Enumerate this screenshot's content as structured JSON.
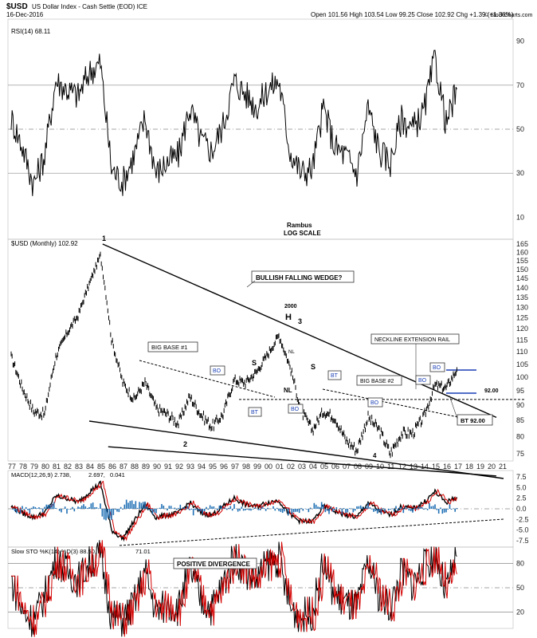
{
  "header": {
    "symbol": "$USD",
    "name": "US Dollar Index - Cash Settle (EOD) ICE",
    "date": "16-Dec-2016",
    "ohlc": "Open 101.56  High 103.54  Low 99.25  Close 102.92  Chg +1.39 (+1.36%)",
    "watermark": "© StockCharts.com"
  },
  "annotations": {
    "author": "Rambus",
    "scale": "LOG SCALE",
    "wedge": "BULLISH FALLING WEDGE?",
    "base1": "BIG BASE #1",
    "base2": "BIG BASE #2",
    "neckline_rail": "NECKLINE EXTENSION RAIL",
    "positive_divergence": "POSITIVE DIVERGENCE",
    "bt92": "BT 92.00",
    "level92": "92.00",
    "year2000": "2000",
    "h": "H",
    "s": "S",
    "nl": "NL",
    "bo": "BO",
    "bt": "BT",
    "p1": "1",
    "p2": "2",
    "p3": "3",
    "p4": "4"
  },
  "panels": {
    "rsi": {
      "label": "RSI(14) 68.11",
      "ticks": [
        90,
        70,
        50,
        30,
        10
      ]
    },
    "price": {
      "label": "$USD (Monthly) 102.92",
      "ticks": [
        165,
        160,
        155,
        150,
        145,
        140,
        135,
        130,
        125,
        120,
        115,
        110,
        105,
        100,
        95,
        90,
        85,
        80,
        75
      ]
    },
    "macd": {
      "label_main": "MACD(12,26,9) 2.738,",
      "label_signal": "2.697,",
      "label_hist": "0.041",
      "ticks": [
        "7.5",
        "5.0",
        "2.5",
        "0.0",
        "-2.5",
        "-5.0",
        "-7.5"
      ]
    },
    "sto": {
      "label_main": "Slow STO %K(14) %D(3) 88.50,",
      "label_d": "71.01",
      "ticks": [
        80,
        50,
        20
      ]
    }
  },
  "years": [
    "77",
    "78",
    "79",
    "80",
    "81",
    "82",
    "83",
    "84",
    "85",
    "86",
    "87",
    "88",
    "89",
    "90",
    "91",
    "92",
    "93",
    "94",
    "95",
    "96",
    "97",
    "98",
    "99",
    "00",
    "01",
    "02",
    "03",
    "04",
    "05",
    "06",
    "07",
    "08",
    "09",
    "10",
    "11",
    "12",
    "13",
    "14",
    "15",
    "16",
    "17",
    "18",
    "19",
    "20",
    "21"
  ],
  "chart_data": {
    "type": "line",
    "title": "$USD US Dollar Index - Cash Settle (EOD) ICE",
    "y_scale": "log",
    "x": [
      1977,
      1978,
      1979,
      1980,
      1981,
      1982,
      1983,
      1984,
      1985,
      1986,
      1987,
      1988,
      1989,
      1990,
      1991,
      1992,
      1993,
      1994,
      1995,
      1996,
      1997,
      1998,
      1999,
      2000,
      2001,
      2002,
      2003,
      2004,
      2005,
      2006,
      2007,
      2008,
      2009,
      2010,
      2011,
      2012,
      2013,
      2014,
      2015,
      2016,
      2016.96
    ],
    "series": [
      {
        "name": "$USD (Monthly)",
        "values": [
          108,
          96,
          88,
          87,
          108,
          118,
          126,
          142,
          158,
          115,
          98,
          92,
          98,
          89,
          87,
          84,
          93,
          87,
          83,
          87,
          99,
          98,
          102,
          109,
          117,
          104,
          88,
          82,
          88,
          86,
          79,
          76,
          86,
          82,
          75,
          81,
          81,
          86,
          97,
          96,
          102.92
        ]
      },
      {
        "name": "RSI(14)",
        "values": [
          55,
          42,
          25,
          38,
          72,
          68,
          65,
          76,
          80,
          32,
          26,
          38,
          55,
          30,
          35,
          38,
          60,
          45,
          40,
          52,
          72,
          66,
          60,
          68,
          72,
          40,
          30,
          32,
          60,
          42,
          38,
          30,
          60,
          40,
          35,
          55,
          50,
          58,
          82,
          52,
          68.11
        ]
      },
      {
        "name": "MACD(12,26,9)",
        "values": [
          0.5,
          -1,
          -2,
          -1,
          3,
          2.5,
          1.5,
          4,
          6,
          -5,
          -7,
          -3,
          1,
          -2,
          -1.5,
          -1,
          1.5,
          -1,
          -1.5,
          0.5,
          2.5,
          1,
          0.5,
          1.5,
          2,
          -1.5,
          -3,
          -3,
          0.5,
          -0.5,
          -1.5,
          -2,
          1.5,
          -0.5,
          -1.5,
          0.5,
          0,
          1.5,
          4,
          1.5,
          2.738
        ]
      },
      {
        "name": "Slow STO %K(14)",
        "values": [
          60,
          20,
          10,
          40,
          85,
          70,
          60,
          80,
          90,
          15,
          10,
          30,
          70,
          20,
          30,
          25,
          75,
          35,
          25,
          55,
          88,
          70,
          60,
          80,
          85,
          25,
          15,
          20,
          80,
          40,
          30,
          25,
          80,
          40,
          25,
          70,
          55,
          75,
          90,
          45,
          88.5
        ]
      }
    ],
    "y_ranges": {
      "price": [
        73,
        168
      ],
      "rsi": [
        0,
        100
      ],
      "macd": [
        -9,
        9
      ],
      "sto": [
        0,
        100
      ]
    },
    "reference_levels": {
      "rsi": [
        70,
        50,
        30
      ],
      "price": [
        92.0
      ],
      "sto": [
        80,
        50,
        20
      ]
    },
    "trendlines": [
      {
        "name": "upper wedge",
        "from": [
          1985.2,
          165
        ],
        "to": [
          2020.5,
          86
        ]
      },
      {
        "name": "lower wedge",
        "from": [
          1985.7,
          77
        ],
        "to": [
          2020.5,
          69
        ]
      }
    ]
  }
}
